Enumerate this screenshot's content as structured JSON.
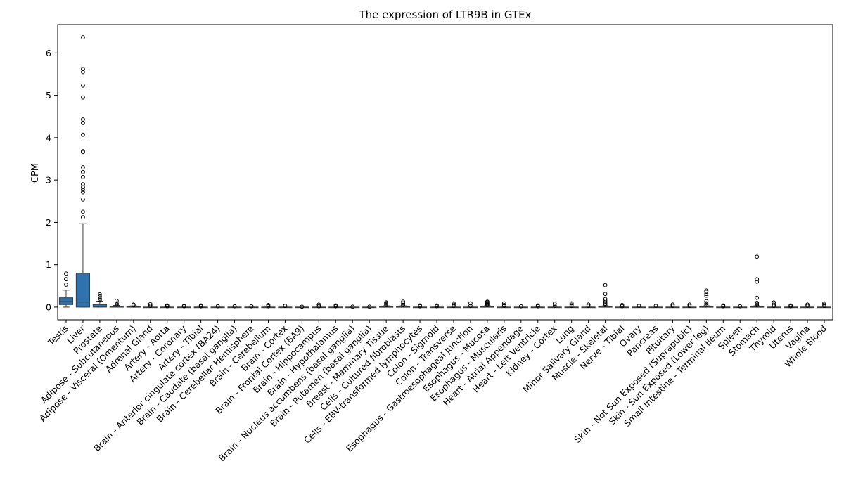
{
  "chart_data": {
    "type": "box",
    "title": "The expression of LTR9B in GTEx",
    "xlabel": "",
    "ylabel": "CPM",
    "ylim": [
      -0.3,
      6.67
    ],
    "yticks": [
      0,
      1,
      2,
      3,
      4,
      5,
      6
    ],
    "box_color": "#2f72ad",
    "categories": [
      "Testis",
      "Liver",
      "Prostate",
      "Adipose - Subcutaneous",
      "Adipose - Visceral (Omentum)",
      "Adrenal Gland",
      "Artery - Aorta",
      "Artery - Coronary",
      "Artery - Tibial",
      "Brain - Anterior cingulate cortex (BA24)",
      "Brain - Caudate (basal ganglia)",
      "Brain - Cerebellar Hemisphere",
      "Brain - Cerebellum",
      "Brain - Cortex",
      "Brain - Frontal Cortex (BA9)",
      "Brain - Hippocampus",
      "Brain - Hypothalamus",
      "Brain - Nucleus accumbens (basal ganglia)",
      "Brain - Putamen (basal ganglia)",
      "Breast - Mammary Tissue",
      "Cells - Cultured fibroblasts",
      "Cells - EBV-transformed lymphocytes",
      "Colon - Sigmoid",
      "Colon - Transverse",
      "Esophagus - Gastroesophageal Junction",
      "Esophagus - Mucosa",
      "Esophagus - Muscularis",
      "Heart - Atrial Appendage",
      "Heart - Left Ventricle",
      "Kidney - Cortex",
      "Lung",
      "Minor Salivary Gland",
      "Muscle - Skeletal",
      "Nerve - Tibial",
      "Ovary",
      "Pancreas",
      "Pituitary",
      "Skin - Not Sun Exposed (Suprapubic)",
      "Skin - Sun Exposed (Lower leg)",
      "Small Intestine - Terminal Ileum",
      "Spleen",
      "Stomach",
      "Thyroid",
      "Uterus",
      "Vagina",
      "Whole Blood"
    ],
    "boxes": [
      {
        "q1": 0.06,
        "median": 0.13,
        "q3": 0.22,
        "whisker_low": 0.0,
        "whisker_high": 0.4,
        "outliers": [
          0.53,
          0.66,
          0.79
        ]
      },
      {
        "q1": 0.0,
        "median": 0.12,
        "q3": 0.8,
        "whisker_low": 0.0,
        "whisker_high": 1.97,
        "outliers": [
          2.12,
          2.25,
          2.54,
          2.71,
          2.77,
          2.83,
          2.9,
          3.07,
          3.19,
          3.3,
          3.66,
          3.68,
          4.07,
          4.35,
          4.43,
          4.95,
          5.23,
          5.55,
          5.62,
          6.37
        ]
      },
      {
        "q1": 0.0,
        "median": 0.02,
        "q3": 0.06,
        "whisker_low": 0.0,
        "whisker_high": 0.14,
        "outliers": [
          0.17,
          0.2,
          0.25,
          0.3
        ]
      },
      {
        "q1": 0.0,
        "median": 0.0,
        "q3": 0.02,
        "whisker_low": 0.0,
        "whisker_high": 0.04,
        "outliers": [
          0.06,
          0.09,
          0.15
        ]
      },
      {
        "q1": 0.0,
        "median": 0.0,
        "q3": 0.01,
        "whisker_low": 0.0,
        "whisker_high": 0.03,
        "outliers": [
          0.04,
          0.06
        ]
      },
      {
        "q1": 0.0,
        "median": 0.0,
        "q3": 0.0,
        "whisker_low": 0.0,
        "whisker_high": 0.0,
        "outliers": [
          0.03,
          0.07
        ]
      },
      {
        "q1": 0.0,
        "median": 0.0,
        "q3": 0.0,
        "whisker_low": 0.0,
        "whisker_high": 0.0,
        "outliers": [
          0.02,
          0.04
        ]
      },
      {
        "q1": 0.0,
        "median": 0.0,
        "q3": 0.0,
        "whisker_low": 0.0,
        "whisker_high": 0.0,
        "outliers": [
          0.02,
          0.03
        ]
      },
      {
        "q1": 0.0,
        "median": 0.0,
        "q3": 0.0,
        "whisker_low": 0.0,
        "whisker_high": 0.0,
        "outliers": [
          0.02,
          0.04
        ]
      },
      {
        "q1": 0.0,
        "median": 0.0,
        "q3": 0.0,
        "whisker_low": 0.0,
        "whisker_high": 0.0,
        "outliers": [
          0.02
        ]
      },
      {
        "q1": 0.0,
        "median": 0.0,
        "q3": 0.0,
        "whisker_low": 0.0,
        "whisker_high": 0.0,
        "outliers": [
          0.02
        ]
      },
      {
        "q1": 0.0,
        "median": 0.0,
        "q3": 0.0,
        "whisker_low": 0.0,
        "whisker_high": 0.0,
        "outliers": [
          0.02
        ]
      },
      {
        "q1": 0.0,
        "median": 0.0,
        "q3": 0.0,
        "whisker_low": 0.0,
        "whisker_high": 0.0,
        "outliers": [
          0.02,
          0.05
        ]
      },
      {
        "q1": 0.0,
        "median": 0.0,
        "q3": 0.0,
        "whisker_low": 0.0,
        "whisker_high": 0.0,
        "outliers": [
          0.03
        ]
      },
      {
        "q1": 0.0,
        "median": 0.0,
        "q3": 0.0,
        "whisker_low": 0.0,
        "whisker_high": 0.0,
        "outliers": [
          0.01
        ]
      },
      {
        "q1": 0.0,
        "median": 0.0,
        "q3": 0.0,
        "whisker_low": 0.0,
        "whisker_high": 0.0,
        "outliers": [
          0.02,
          0.06
        ]
      },
      {
        "q1": 0.0,
        "median": 0.0,
        "q3": 0.0,
        "whisker_low": 0.0,
        "whisker_high": 0.0,
        "outliers": [
          0.02,
          0.04
        ]
      },
      {
        "q1": 0.0,
        "median": 0.0,
        "q3": 0.0,
        "whisker_low": 0.0,
        "whisker_high": 0.0,
        "outliers": [
          0.01
        ]
      },
      {
        "q1": 0.0,
        "median": 0.0,
        "q3": 0.0,
        "whisker_low": 0.0,
        "whisker_high": 0.0,
        "outliers": [
          0.01
        ]
      },
      {
        "q1": 0.0,
        "median": 0.0,
        "q3": 0.01,
        "whisker_low": 0.0,
        "whisker_high": 0.03,
        "outliers": [
          0.05,
          0.07,
          0.09,
          0.11
        ]
      },
      {
        "q1": 0.0,
        "median": 0.0,
        "q3": 0.01,
        "whisker_low": 0.0,
        "whisker_high": 0.03,
        "outliers": [
          0.05,
          0.09,
          0.13
        ]
      },
      {
        "q1": 0.0,
        "median": 0.0,
        "q3": 0.0,
        "whisker_low": 0.0,
        "whisker_high": 0.0,
        "outliers": [
          0.02,
          0.04
        ]
      },
      {
        "q1": 0.0,
        "median": 0.0,
        "q3": 0.0,
        "whisker_low": 0.0,
        "whisker_high": 0.0,
        "outliers": [
          0.02,
          0.04
        ]
      },
      {
        "q1": 0.0,
        "median": 0.0,
        "q3": 0.0,
        "whisker_low": 0.0,
        "whisker_high": 0.0,
        "outliers": [
          0.03,
          0.06,
          0.09
        ]
      },
      {
        "q1": 0.0,
        "median": 0.0,
        "q3": 0.0,
        "whisker_low": 0.0,
        "whisker_high": 0.0,
        "outliers": [
          0.03,
          0.09
        ]
      },
      {
        "q1": 0.0,
        "median": 0.0,
        "q3": 0.01,
        "whisker_low": 0.0,
        "whisker_high": 0.03,
        "outliers": [
          0.05,
          0.07,
          0.09,
          0.11,
          0.13
        ]
      },
      {
        "q1": 0.0,
        "median": 0.0,
        "q3": 0.0,
        "whisker_low": 0.0,
        "whisker_high": 0.0,
        "outliers": [
          0.03,
          0.05,
          0.09
        ]
      },
      {
        "q1": 0.0,
        "median": 0.0,
        "q3": 0.0,
        "whisker_low": 0.0,
        "whisker_high": 0.0,
        "outliers": [
          0.02
        ]
      },
      {
        "q1": 0.0,
        "median": 0.0,
        "q3": 0.0,
        "whisker_low": 0.0,
        "whisker_high": 0.0,
        "outliers": [
          0.02,
          0.04
        ]
      },
      {
        "q1": 0.0,
        "median": 0.0,
        "q3": 0.0,
        "whisker_low": 0.0,
        "whisker_high": 0.0,
        "outliers": [
          0.03,
          0.08
        ]
      },
      {
        "q1": 0.0,
        "median": 0.0,
        "q3": 0.0,
        "whisker_low": 0.0,
        "whisker_high": 0.0,
        "outliers": [
          0.03,
          0.06,
          0.09
        ]
      },
      {
        "q1": 0.0,
        "median": 0.0,
        "q3": 0.0,
        "whisker_low": 0.0,
        "whisker_high": 0.0,
        "outliers": [
          0.03,
          0.06
        ]
      },
      {
        "q1": 0.0,
        "median": 0.0,
        "q3": 0.01,
        "whisker_low": 0.0,
        "whisker_high": 0.03,
        "outliers": [
          0.05,
          0.08,
          0.11,
          0.15,
          0.19,
          0.31,
          0.52
        ]
      },
      {
        "q1": 0.0,
        "median": 0.0,
        "q3": 0.0,
        "whisker_low": 0.0,
        "whisker_high": 0.0,
        "outliers": [
          0.02,
          0.05
        ]
      },
      {
        "q1": 0.0,
        "median": 0.0,
        "q3": 0.0,
        "whisker_low": 0.0,
        "whisker_high": 0.0,
        "outliers": [
          0.03
        ]
      },
      {
        "q1": 0.0,
        "median": 0.0,
        "q3": 0.0,
        "whisker_low": 0.0,
        "whisker_high": 0.0,
        "outliers": [
          0.03
        ]
      },
      {
        "q1": 0.0,
        "median": 0.0,
        "q3": 0.0,
        "whisker_low": 0.0,
        "whisker_high": 0.0,
        "outliers": [
          0.03,
          0.06
        ]
      },
      {
        "q1": 0.0,
        "median": 0.0,
        "q3": 0.0,
        "whisker_low": 0.0,
        "whisker_high": 0.0,
        "outliers": [
          0.03,
          0.06
        ]
      },
      {
        "q1": 0.0,
        "median": 0.0,
        "q3": 0.01,
        "whisker_low": 0.0,
        "whisker_high": 0.03,
        "outliers": [
          0.05,
          0.09,
          0.14,
          0.27,
          0.31,
          0.36,
          0.39
        ]
      },
      {
        "q1": 0.0,
        "median": 0.0,
        "q3": 0.0,
        "whisker_low": 0.0,
        "whisker_high": 0.0,
        "outliers": [
          0.02,
          0.04
        ]
      },
      {
        "q1": 0.0,
        "median": 0.0,
        "q3": 0.0,
        "whisker_low": 0.0,
        "whisker_high": 0.0,
        "outliers": [
          0.02
        ]
      },
      {
        "q1": 0.0,
        "median": 0.0,
        "q3": 0.01,
        "whisker_low": 0.0,
        "whisker_high": 0.03,
        "outliers": [
          0.05,
          0.08,
          0.1,
          0.22,
          0.6,
          0.66,
          1.19
        ]
      },
      {
        "q1": 0.0,
        "median": 0.0,
        "q3": 0.0,
        "whisker_low": 0.0,
        "whisker_high": 0.0,
        "outliers": [
          0.03,
          0.06,
          0.11
        ]
      },
      {
        "q1": 0.0,
        "median": 0.0,
        "q3": 0.0,
        "whisker_low": 0.0,
        "whisker_high": 0.0,
        "outliers": [
          0.02,
          0.04
        ]
      },
      {
        "q1": 0.0,
        "median": 0.0,
        "q3": 0.0,
        "whisker_low": 0.0,
        "whisker_high": 0.0,
        "outliers": [
          0.03,
          0.06
        ]
      },
      {
        "q1": 0.0,
        "median": 0.0,
        "q3": 0.0,
        "whisker_low": 0.0,
        "whisker_high": 0.0,
        "outliers": [
          0.03,
          0.06,
          0.09
        ]
      }
    ]
  }
}
